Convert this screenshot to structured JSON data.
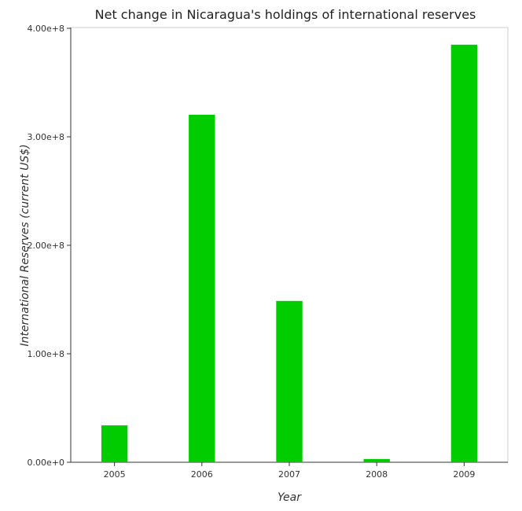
{
  "chart_data": {
    "type": "bar",
    "title": "Net change in Nicaragua's holdings of international reserves",
    "xlabel": "Year",
    "ylabel": "International Reserves (current US$)",
    "categories": [
      "2005",
      "2006",
      "2007",
      "2008",
      "2009"
    ],
    "values": [
      34000000,
      320300000,
      148700000,
      3000000,
      384900000
    ],
    "ylim": [
      0,
      400000000
    ],
    "yticks": [
      0,
      100000000,
      200000000,
      300000000,
      400000000
    ],
    "ytick_labels": [
      "0.00e+0",
      "1.00e+8",
      "2.00e+8",
      "3.00e+8",
      "4.00e+8"
    ],
    "bar_color": "#00cc00",
    "grid": false,
    "legend": "none"
  }
}
